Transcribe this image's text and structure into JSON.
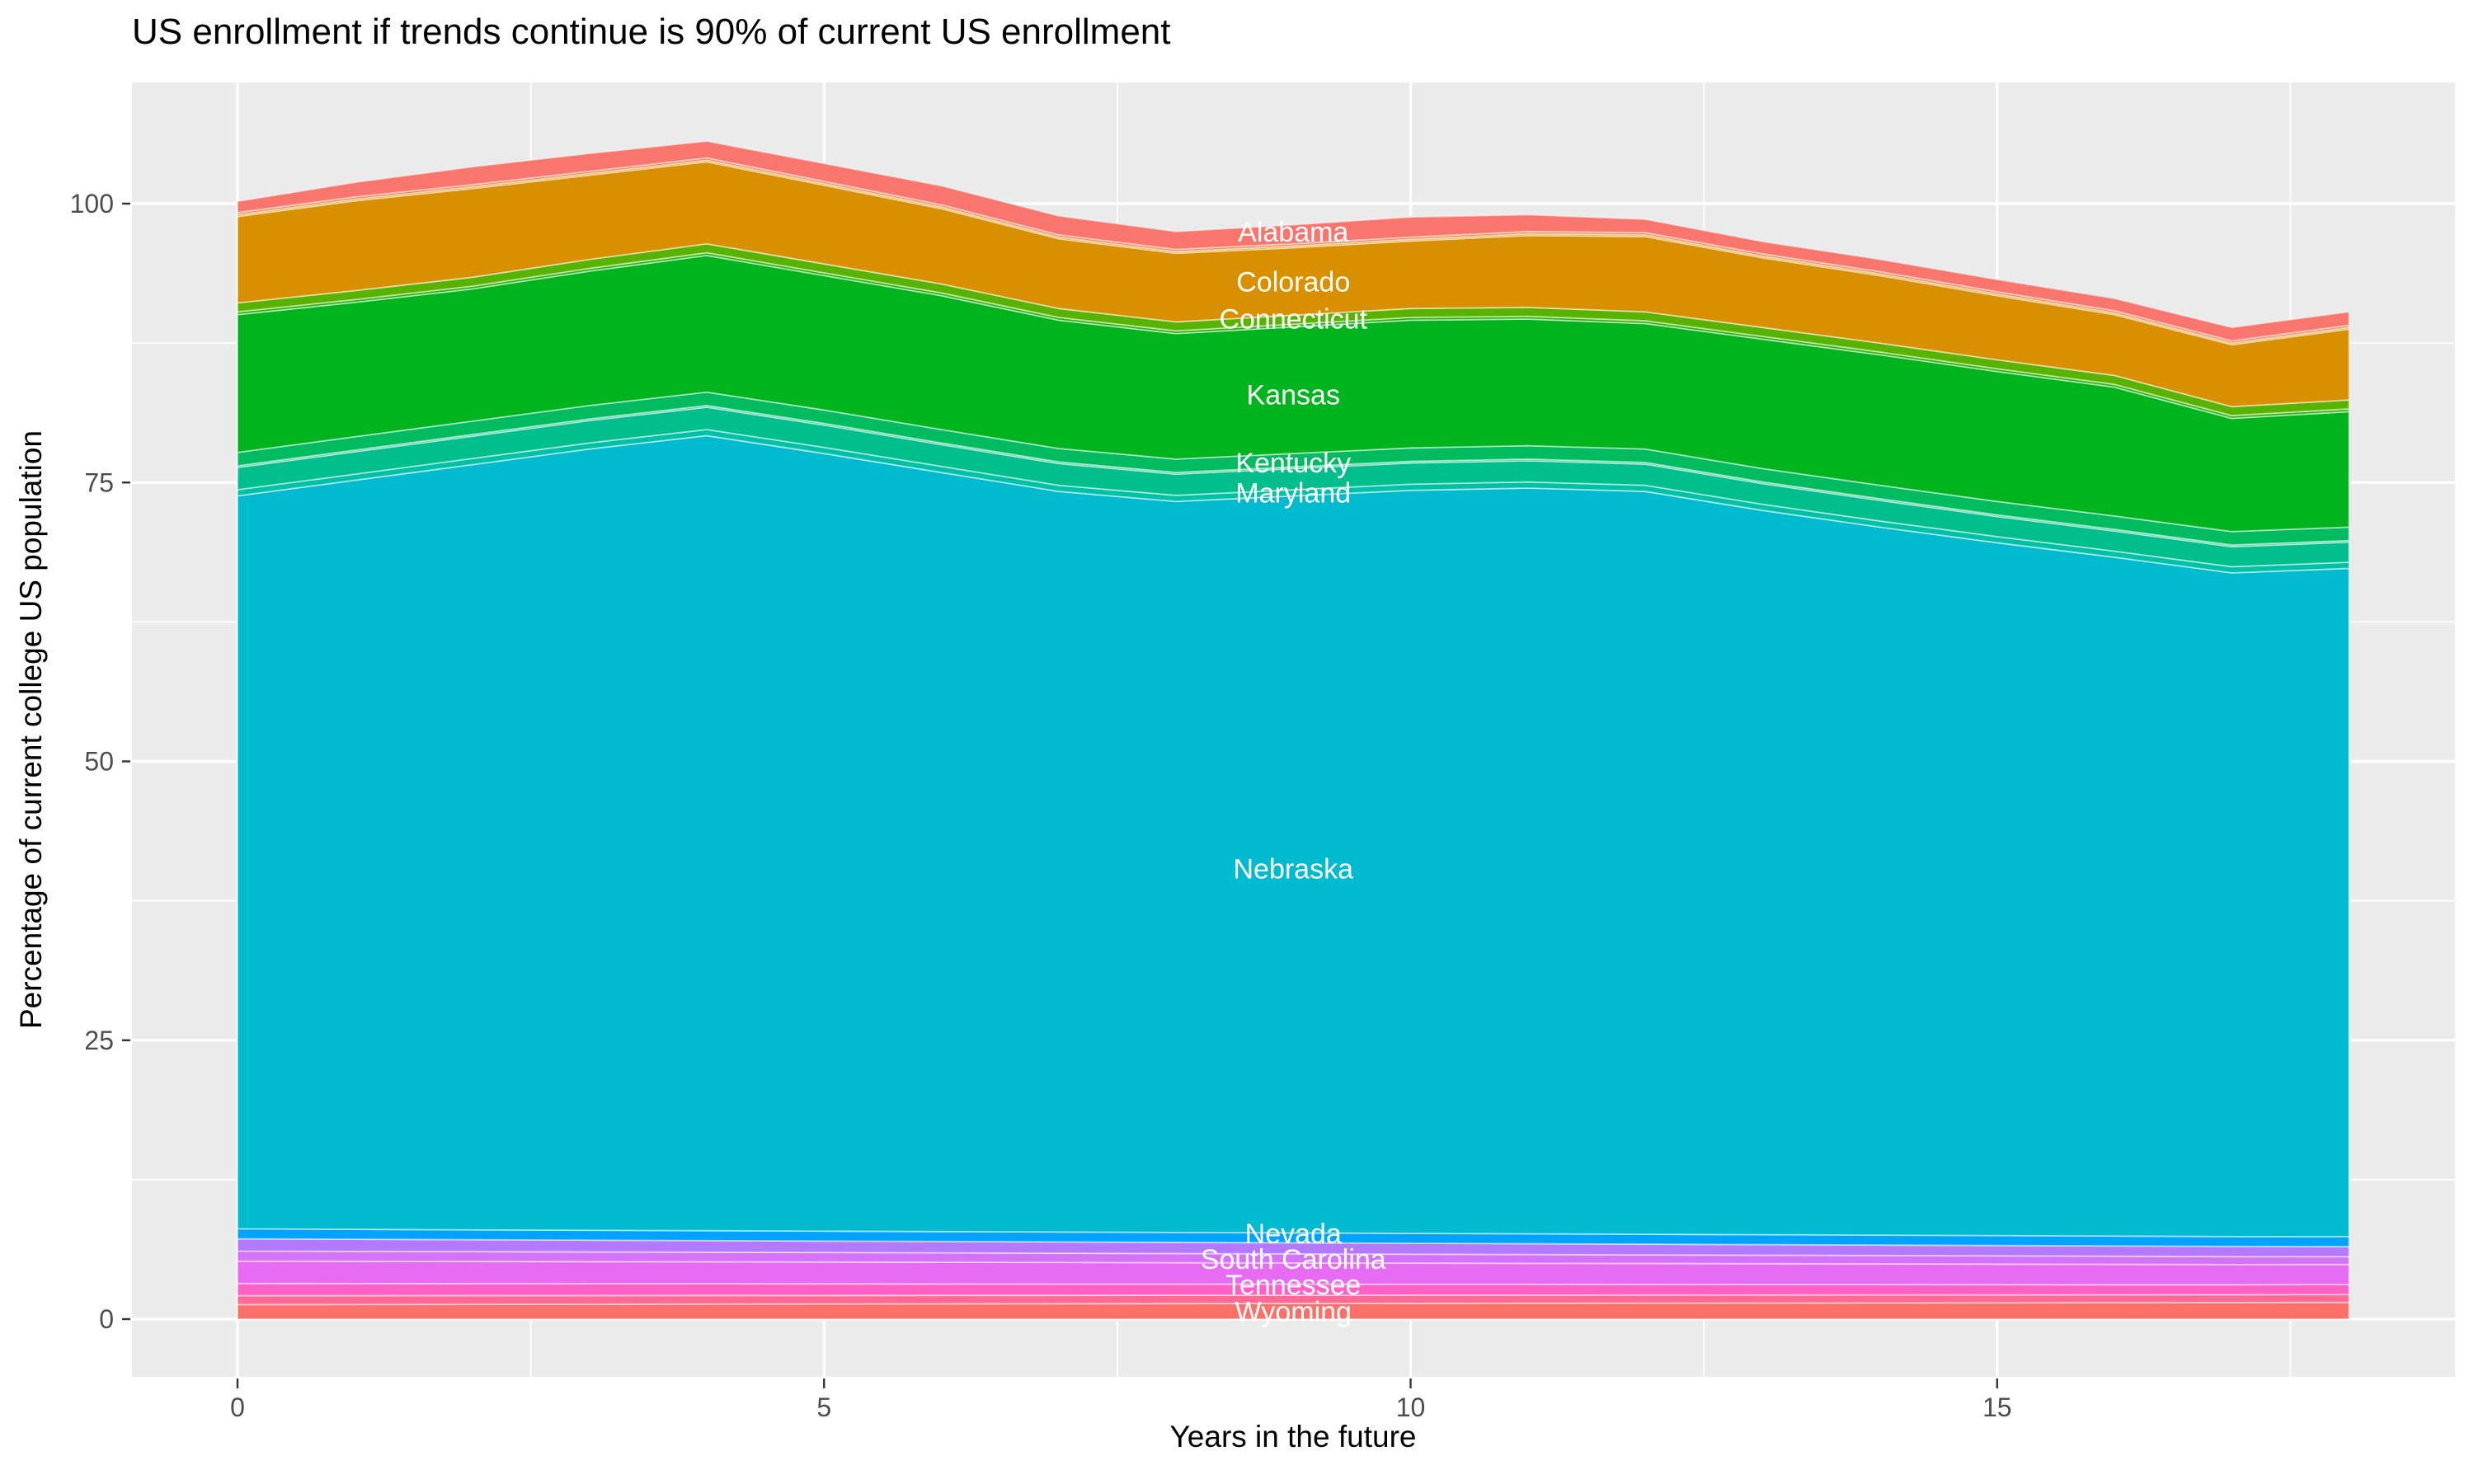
{
  "title": "US enrollment if trends continue is 90% of current US enrollment",
  "axes": {
    "x": {
      "title": "Years in the future",
      "major_ticks": [
        0,
        5,
        10,
        15
      ],
      "minor_ticks": [
        2.5,
        7.5,
        12.5,
        17.5
      ],
      "range": [
        -0.9,
        18.9
      ]
    },
    "y": {
      "title": "Percentage of current college US population",
      "major_ticks": [
        0,
        25,
        50,
        75,
        100
      ],
      "minor_ticks": [
        12.5,
        37.5,
        62.5,
        87.5
      ],
      "range": [
        -5.2,
        110.9
      ]
    }
  },
  "panel": {
    "background": "#EBEBEB",
    "grid_color": "#FFFFFF",
    "tick_color": "#333333",
    "tick_label_color": "#4D4D4D",
    "band_separator_color": "rgba(255,255,255,0.5)"
  },
  "chart_data": {
    "type": "area",
    "stacked": true,
    "x": [
      0,
      1,
      2,
      3,
      4,
      5,
      6,
      7,
      8,
      9,
      10,
      11,
      12,
      13,
      14,
      15,
      16,
      17,
      18
    ],
    "total_top": [
      100.2,
      101.9,
      103.3,
      104.5,
      105.6,
      103.6,
      101.6,
      98.9,
      97.5,
      98.1,
      98.8,
      99.0,
      98.6,
      96.6,
      95.0,
      93.2,
      91.5,
      88.9,
      90.3
    ],
    "label_x": 9,
    "label_color": "#FFFFFF",
    "series": [
      {
        "name": "Alabama",
        "label": "Alabama",
        "label_y": 97.5,
        "color": "#F8766D",
        "values": [
          1.0,
          1.3,
          1.6,
          1.6,
          1.5,
          1.6,
          1.7,
          1.7,
          1.6,
          1.7,
          1.8,
          1.5,
          1.2,
          1.1,
          1.1,
          1.1,
          1.1,
          1.2,
          1.2
        ]
      },
      {
        "name": "unlabeled-band-1",
        "label": null,
        "color": "#EE8044",
        "values": [
          0.2,
          0.2,
          0.2,
          0.2,
          0.2,
          0.2,
          0.2,
          0.2,
          0.2,
          0.2,
          0.2,
          0.2,
          0.2,
          0.2,
          0.2,
          0.2,
          0.2,
          0.2,
          0.2
        ]
      },
      {
        "name": "unlabeled-band-2",
        "label": null,
        "color": "#E68A00",
        "values": [
          0.15,
          0.15,
          0.15,
          0.15,
          0.15,
          0.15,
          0.15,
          0.15,
          0.15,
          0.15,
          0.15,
          0.15,
          0.15,
          0.15,
          0.15,
          0.15,
          0.15,
          0.15,
          0.15
        ]
      },
      {
        "name": "Colorado",
        "label": "Colorado",
        "label_y": 93.0,
        "color": "#D89000",
        "values": [
          7.75,
          8.05,
          7.95,
          7.55,
          7.35,
          7.05,
          6.75,
          6.25,
          6.15,
          6.05,
          6.05,
          6.45,
          6.75,
          6.25,
          6.05,
          5.75,
          5.45,
          5.55,
          6.35
        ]
      },
      {
        "name": "Connecticut",
        "label": "Connecticut",
        "label_y": 89.7,
        "color": "#58B300",
        "values": [
          0.8,
          0.8,
          0.8,
          0.8,
          0.8,
          0.8,
          0.8,
          0.8,
          0.8,
          0.8,
          0.8,
          0.8,
          0.8,
          0.8,
          0.8,
          0.8,
          0.8,
          0.8,
          0.8
        ]
      },
      {
        "name": "unlabeled-band-3",
        "label": null,
        "color": "#2CB50D",
        "values": [
          0.25,
          0.25,
          0.25,
          0.25,
          0.25,
          0.25,
          0.25,
          0.25,
          0.25,
          0.25,
          0.25,
          0.25,
          0.25,
          0.25,
          0.25,
          0.25,
          0.25,
          0.25,
          0.25
        ]
      },
      {
        "name": "Kansas",
        "label": "Kansas",
        "label_y": 82.9,
        "color": "#00B41E",
        "values": [
          12.35,
          12.05,
          11.85,
          12.05,
          12.25,
          12.05,
          12.0,
          11.5,
          11.25,
          11.35,
          11.45,
          11.35,
          11.25,
          11.6,
          11.7,
          11.65,
          11.55,
          10.15,
          10.35
        ]
      },
      {
        "name": "Kentucky",
        "label": "Kentucky",
        "label_y": 76.8,
        "color": "#00BB60",
        "values": [
          1.2,
          1.2,
          1.2,
          1.2,
          1.2,
          1.2,
          1.2,
          1.2,
          1.2,
          1.2,
          1.2,
          1.2,
          1.2,
          1.2,
          1.2,
          1.2,
          1.2,
          1.2,
          1.2
        ]
      },
      {
        "name": "unlabeled-band-4",
        "label": null,
        "color": "#00BD77",
        "values": [
          0.15,
          0.15,
          0.15,
          0.15,
          0.15,
          0.15,
          0.15,
          0.15,
          0.15,
          0.15,
          0.15,
          0.15,
          0.15,
          0.15,
          0.15,
          0.15,
          0.15,
          0.15,
          0.15
        ]
      },
      {
        "name": "Maryland",
        "label": "Maryland",
        "label_y": 74.1,
        "color": "#00BF8C",
        "values": [
          2.0,
          2.0,
          2.0,
          2.0,
          2.0,
          2.0,
          1.95,
          1.95,
          1.9,
          1.9,
          1.9,
          1.9,
          1.9,
          1.85,
          1.85,
          1.8,
          1.8,
          1.8,
          1.8
        ]
      },
      {
        "name": "unlabeled-band-5",
        "label": null,
        "color": "#00C1A7",
        "values": [
          0.55,
          0.55,
          0.55,
          0.55,
          0.55,
          0.55,
          0.55,
          0.55,
          0.55,
          0.55,
          0.55,
          0.55,
          0.55,
          0.55,
          0.55,
          0.55,
          0.55,
          0.55,
          0.55
        ]
      },
      {
        "name": "Nebraska",
        "label": "Nebraska",
        "label_y": 40.4,
        "color": "#00BACF",
        "values": [
          65.7,
          67.15,
          68.6,
          70.03,
          71.27,
          69.71,
          68.05,
          66.39,
          65.53,
          66.07,
          66.61,
          66.85,
          66.59,
          64.93,
          63.47,
          62.11,
          60.85,
          59.5,
          59.9
        ]
      },
      {
        "name": "Nevada",
        "label": "Nevada",
        "label_y": 7.7,
        "color": "#00A3FF",
        "values": [
          0.9,
          0.89,
          0.88,
          0.89,
          0.89,
          0.89,
          0.89,
          0.89,
          0.89,
          0.89,
          0.89,
          0.89,
          0.89,
          0.89,
          0.89,
          0.89,
          0.89,
          0.88,
          0.9
        ]
      },
      {
        "name": "unlabeled-band-6",
        "label": null,
        "color": "#B37AFF",
        "values": [
          1.1,
          1.09,
          1.07,
          1.06,
          1.04,
          1.03,
          1.02,
          1.01,
          1.0,
          0.99,
          0.98,
          0.97,
          0.96,
          0.95,
          0.94,
          0.93,
          0.92,
          0.92,
          0.9
        ]
      },
      {
        "name": "unlabeled-band-7",
        "label": null,
        "color": "#D472FA",
        "values": [
          0.9,
          0.89,
          0.88,
          0.87,
          0.86,
          0.85,
          0.84,
          0.83,
          0.82,
          0.81,
          0.8,
          0.79,
          0.77,
          0.76,
          0.75,
          0.74,
          0.73,
          0.71,
          0.7
        ]
      },
      {
        "name": "South Carolina",
        "label": "South Carolina",
        "label_y": 5.4,
        "color": "#E76BF3",
        "values": [
          2.0,
          1.99,
          1.99,
          1.98,
          1.97,
          1.96,
          1.95,
          1.94,
          1.92,
          1.91,
          1.9,
          1.88,
          1.88,
          1.87,
          1.85,
          1.84,
          1.83,
          1.81,
          1.8
        ]
      },
      {
        "name": "Tennessee",
        "label": "Tennessee",
        "label_y": 3.1,
        "color": "#FE61C5",
        "values": [
          1.1,
          1.09,
          1.07,
          1.06,
          1.05,
          1.04,
          1.02,
          1.01,
          1.0,
          0.99,
          0.97,
          0.97,
          0.95,
          0.94,
          0.93,
          0.92,
          0.9,
          0.89,
          0.9
        ]
      },
      {
        "name": "unlabeled-band-8",
        "label": null,
        "color": "#FF6A95",
        "values": [
          0.8,
          0.79,
          0.79,
          0.78,
          0.77,
          0.76,
          0.76,
          0.75,
          0.75,
          0.74,
          0.74,
          0.73,
          0.73,
          0.72,
          0.72,
          0.71,
          0.71,
          0.71,
          0.7
        ]
      },
      {
        "name": "Wyoming",
        "label": "Wyoming",
        "label_y": 0.7,
        "color": "#FB7069",
        "values": [
          1.3,
          1.31,
          1.32,
          1.33,
          1.35,
          1.36,
          1.37,
          1.38,
          1.39,
          1.4,
          1.41,
          1.42,
          1.43,
          1.44,
          1.45,
          1.46,
          1.47,
          1.48,
          1.5
        ]
      }
    ]
  }
}
